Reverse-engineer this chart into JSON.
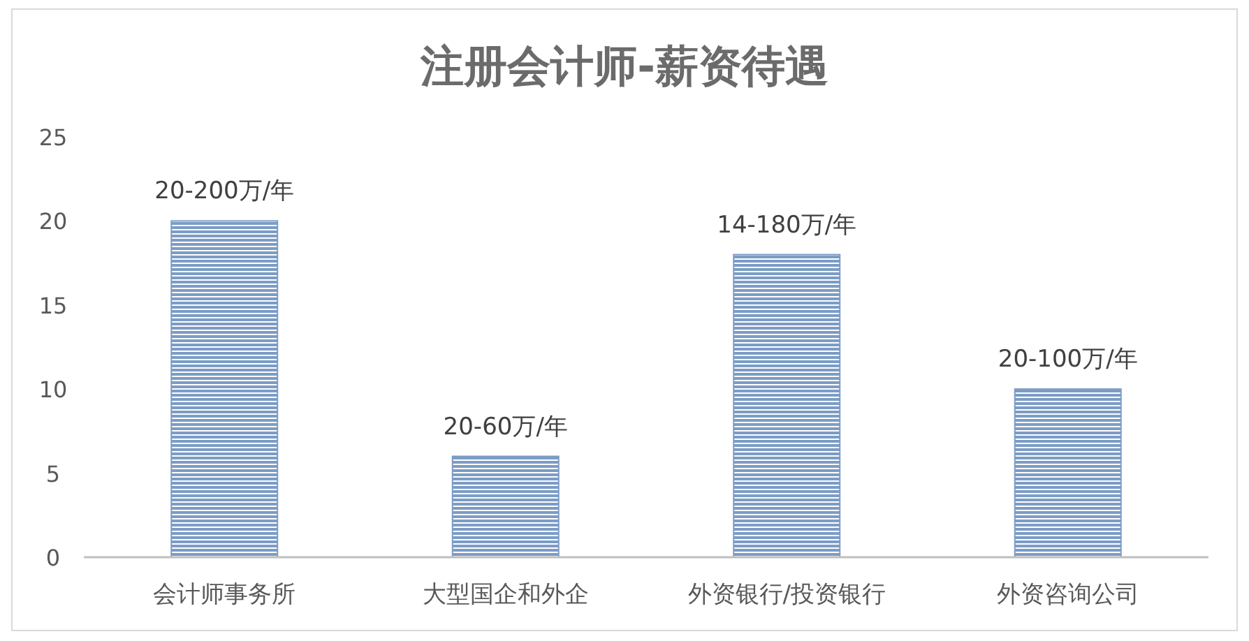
{
  "chart_data": {
    "type": "bar",
    "title": "注册会计师-薪资待遇",
    "categories": [
      "会计师事务所",
      "大型国企和外企",
      "外资银行/投资银行",
      "外资咨询公司"
    ],
    "values": [
      20,
      6,
      18,
      10
    ],
    "value_labels": [
      "20-200万/年",
      "20-60万/年",
      "14-180万/年",
      "20-100万/年"
    ],
    "color": "#7c9cc6",
    "ylim": [
      0,
      25
    ],
    "yticks": [
      0,
      5,
      10,
      15,
      20,
      25
    ]
  }
}
